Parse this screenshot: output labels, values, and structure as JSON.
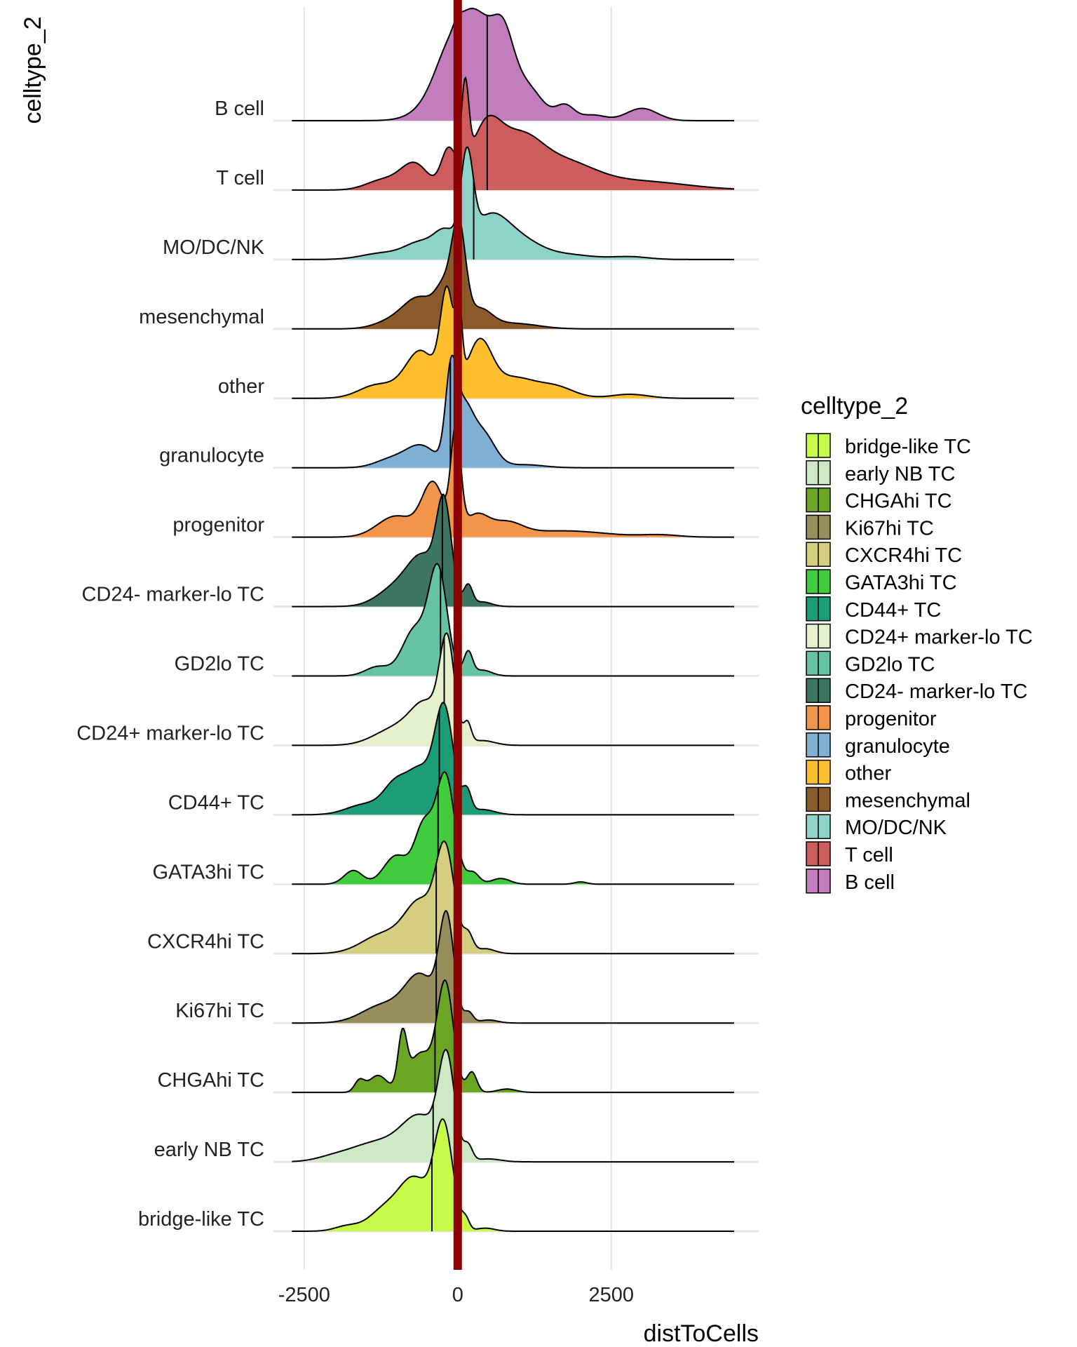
{
  "chart_data": {
    "type": "ridgeline",
    "title": "",
    "xlabel": "distToCells",
    "ylabel": "celltype_2",
    "xlim": [
      -3000,
      4900
    ],
    "x_ticks": [
      -2500,
      0,
      2500
    ],
    "grid": true,
    "reference_line": {
      "x": 0,
      "color": "#8B0000"
    },
    "legend": {
      "title": "celltype_2",
      "position": "right"
    },
    "series": [
      {
        "name": "B cell",
        "color": "#C17DBD",
        "median": 480,
        "range": [
          -2700,
          4500
        ],
        "peaks": [
          [
            230,
            440,
            1.0
          ],
          [
            750,
            160,
            0.35
          ],
          [
            1150,
            250,
            0.22
          ],
          [
            1750,
            150,
            0.13
          ],
          [
            2200,
            200,
            0.05
          ],
          [
            3000,
            250,
            0.11
          ],
          [
            0,
            60,
            0.05
          ],
          [
            -250,
            180,
            0.06
          ]
        ]
      },
      {
        "name": "T cell",
        "color": "#CD5C5C",
        "median": 480,
        "range": [
          -2700,
          4500
        ],
        "peaks": [
          [
            120,
            60,
            0.65
          ],
          [
            450,
            250,
            0.45
          ],
          [
            1000,
            350,
            0.35
          ],
          [
            1700,
            500,
            0.2
          ],
          [
            2900,
            800,
            0.07
          ],
          [
            -150,
            120,
            0.3
          ],
          [
            -700,
            220,
            0.2
          ],
          [
            -1200,
            280,
            0.08
          ]
        ]
      },
      {
        "name": "MO/DC/NK",
        "color": "#8DD3C7",
        "median": 260,
        "range": [
          -2700,
          4500
        ],
        "peaks": [
          [
            150,
            100,
            0.95
          ],
          [
            500,
            300,
            0.42
          ],
          [
            1000,
            350,
            0.2
          ],
          [
            -200,
            180,
            0.26
          ],
          [
            -600,
            250,
            0.17
          ],
          [
            -1200,
            350,
            0.07
          ],
          [
            2800,
            300,
            0.03
          ],
          [
            1800,
            400,
            0.05
          ]
        ]
      },
      {
        "name": "mesenchymal",
        "color": "#8B5A2B",
        "median": 30,
        "range": [
          -2700,
          4500
        ],
        "peaks": [
          [
            20,
            110,
            1.0
          ],
          [
            -200,
            150,
            0.4
          ],
          [
            -600,
            250,
            0.3
          ],
          [
            -1000,
            300,
            0.1
          ],
          [
            350,
            200,
            0.2
          ],
          [
            900,
            400,
            0.06
          ]
        ]
      },
      {
        "name": "other",
        "color": "#FDBF2D",
        "median": 10,
        "range": [
          -2700,
          4500
        ],
        "peaks": [
          [
            -170,
            110,
            0.74
          ],
          [
            20,
            50,
            0.5
          ],
          [
            350,
            200,
            0.4
          ],
          [
            900,
            350,
            0.15
          ],
          [
            1600,
            300,
            0.08
          ],
          [
            -600,
            250,
            0.35
          ],
          [
            -1300,
            300,
            0.1
          ],
          [
            2800,
            300,
            0.03
          ]
        ]
      },
      {
        "name": "granulocyte",
        "color": "#7FB0D4",
        "median": -120,
        "range": [
          -2700,
          4500
        ],
        "peaks": [
          [
            -110,
            90,
            0.82
          ],
          [
            80,
            150,
            0.55
          ],
          [
            400,
            200,
            0.35
          ],
          [
            -600,
            250,
            0.22
          ],
          [
            -1100,
            250,
            0.08
          ],
          [
            1100,
            300,
            0.03
          ]
        ]
      },
      {
        "name": "progenitor",
        "color": "#F0954A",
        "median": -30,
        "range": [
          -2700,
          4500
        ],
        "peaks": [
          [
            -30,
            80,
            0.95
          ],
          [
            -400,
            180,
            0.5
          ],
          [
            -1000,
            300,
            0.2
          ],
          [
            300,
            200,
            0.2
          ],
          [
            800,
            250,
            0.12
          ],
          [
            1700,
            700,
            0.06
          ],
          [
            3300,
            300,
            0.02
          ]
        ]
      },
      {
        "name": "CD24- marker-lo TC",
        "color": "#3C7561",
        "median": -250,
        "range": [
          -2700,
          4500
        ],
        "peaks": [
          [
            -220,
            120,
            1.0
          ],
          [
            -550,
            250,
            0.5
          ],
          [
            -1000,
            300,
            0.2
          ],
          [
            170,
            70,
            0.22
          ],
          [
            400,
            150,
            0.05
          ]
        ]
      },
      {
        "name": "GD2lo TC",
        "color": "#66C2A4",
        "median": -280,
        "range": [
          -2700,
          4500
        ],
        "peaks": [
          [
            -320,
            150,
            0.9
          ],
          [
            -700,
            200,
            0.4
          ],
          [
            -1300,
            200,
            0.08
          ],
          [
            170,
            70,
            0.2
          ],
          [
            400,
            150,
            0.05
          ]
        ]
      },
      {
        "name": "CD24+ marker-lo TC",
        "color": "#E3F1CC",
        "median": -220,
        "range": [
          -2700,
          4500
        ],
        "peaks": [
          [
            -170,
            120,
            1.0
          ],
          [
            -500,
            250,
            0.4
          ],
          [
            -1000,
            350,
            0.18
          ],
          [
            160,
            60,
            0.2
          ],
          [
            400,
            200,
            0.05
          ]
        ]
      },
      {
        "name": "CD44+ TC",
        "color": "#1B9E77",
        "median": -300,
        "range": [
          -2700,
          4500
        ],
        "peaks": [
          [
            -220,
            150,
            1.0
          ],
          [
            -600,
            200,
            0.4
          ],
          [
            -1000,
            200,
            0.28
          ],
          [
            -1500,
            300,
            0.1
          ],
          [
            150,
            70,
            0.2
          ],
          [
            400,
            200,
            0.05
          ]
        ]
      },
      {
        "name": "GATA3hi TC",
        "color": "#42CC3D",
        "median": -320,
        "range": [
          -2700,
          4500
        ],
        "peaks": [
          [
            -200,
            150,
            0.95
          ],
          [
            -550,
            150,
            0.5
          ],
          [
            -1000,
            200,
            0.25
          ],
          [
            -1700,
            150,
            0.12
          ],
          [
            250,
            100,
            0.1
          ],
          [
            700,
            150,
            0.05
          ],
          [
            2000,
            100,
            0.02
          ]
        ]
      },
      {
        "name": "CXCR4hi TC",
        "color": "#D4CE80",
        "median": -350,
        "range": [
          -2700,
          4500
        ],
        "peaks": [
          [
            -200,
            150,
            1.0
          ],
          [
            -600,
            250,
            0.5
          ],
          [
            -1200,
            350,
            0.2
          ],
          [
            170,
            80,
            0.18
          ],
          [
            450,
            150,
            0.05
          ]
        ]
      },
      {
        "name": "Ki67hi TC",
        "color": "#968E5B",
        "median": -350,
        "range": [
          -2700,
          4500
        ],
        "peaks": [
          [
            -180,
            120,
            1.0
          ],
          [
            -600,
            250,
            0.45
          ],
          [
            -1200,
            350,
            0.18
          ],
          [
            180,
            70,
            0.1
          ],
          [
            500,
            150,
            0.03
          ]
        ]
      },
      {
        "name": "CHGAhi TC",
        "color": "#6BA524",
        "median": -370,
        "range": [
          -2700,
          4500
        ],
        "peaks": [
          [
            -200,
            130,
            0.95
          ],
          [
            -900,
            70,
            0.45
          ],
          [
            -600,
            200,
            0.35
          ],
          [
            -1300,
            150,
            0.15
          ],
          [
            -1600,
            80,
            0.1
          ],
          [
            230,
            80,
            0.18
          ],
          [
            800,
            150,
            0.03
          ]
        ]
      },
      {
        "name": "early NB TC",
        "color": "#CCE8C5",
        "median": -400,
        "range": [
          -2700,
          4500
        ],
        "peaks": [
          [
            -180,
            130,
            1.0
          ],
          [
            -600,
            300,
            0.45
          ],
          [
            -1300,
            400,
            0.2
          ],
          [
            -2000,
            300,
            0.05
          ],
          [
            170,
            70,
            0.15
          ],
          [
            500,
            200,
            0.03
          ]
        ]
      },
      {
        "name": "bridge-like TC",
        "color": "#C6FC47",
        "median": -420,
        "range": [
          -2700,
          4500
        ],
        "peaks": [
          [
            -230,
            150,
            1.0
          ],
          [
            -700,
            250,
            0.5
          ],
          [
            -1200,
            250,
            0.2
          ],
          [
            -1800,
            200,
            0.05
          ],
          [
            130,
            60,
            0.1
          ],
          [
            450,
            150,
            0.03
          ]
        ]
      }
    ]
  }
}
